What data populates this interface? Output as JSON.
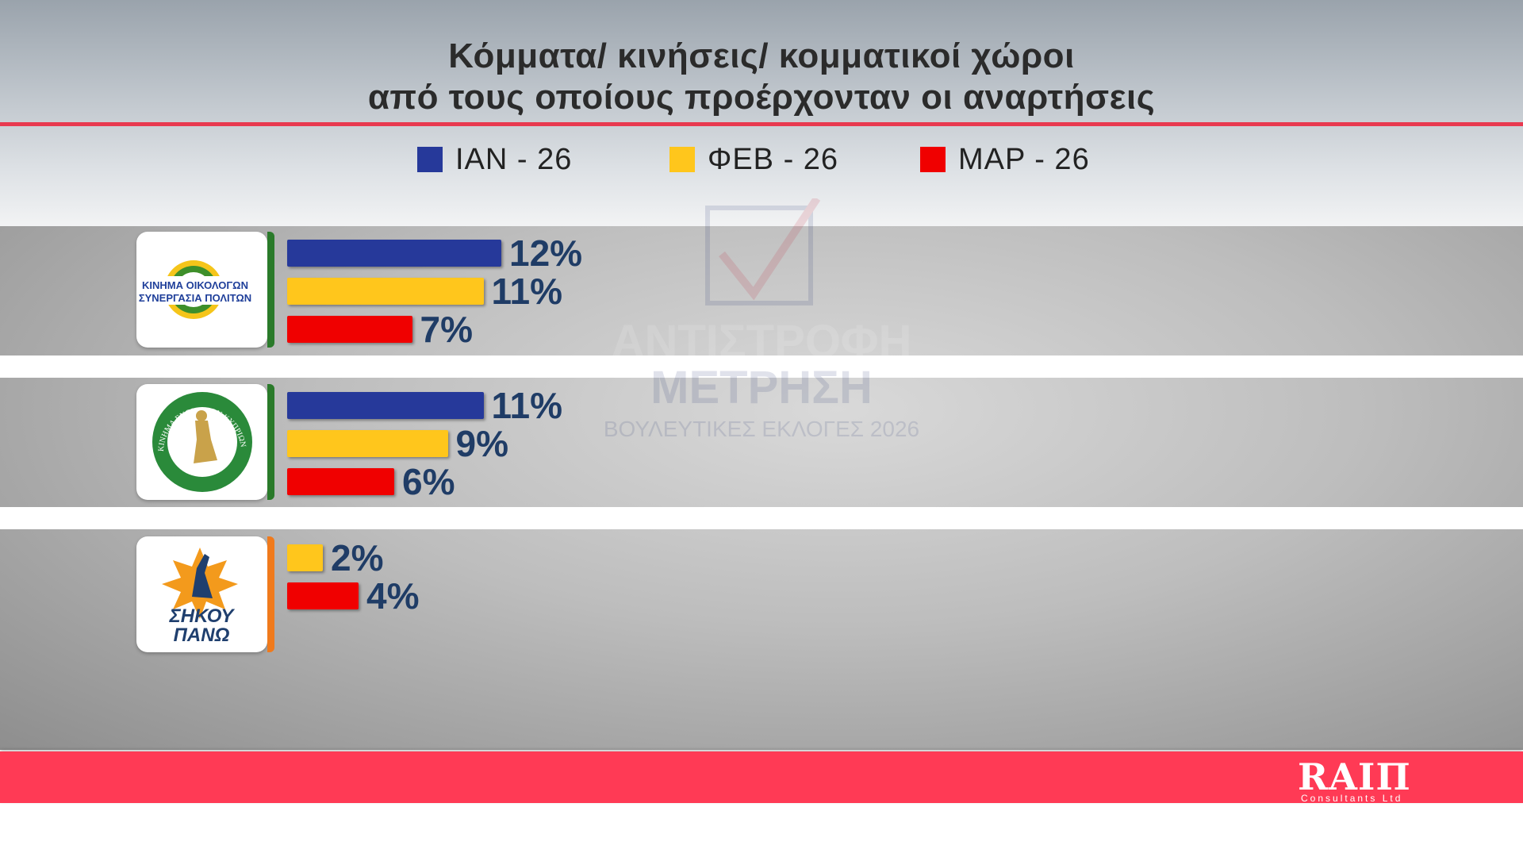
{
  "title_line1": "Κόμματα/ κινήσεις/ κομματικοί χώροι",
  "title_line2": "από τους οποίους προέρχονταν οι αναρτήσεις",
  "colors": {
    "jan": "#26399a",
    "feb": "#ffc61c",
    "mar": "#f00000",
    "accent": "#e8394f",
    "label": "#1f3c66"
  },
  "chart_data": {
    "type": "bar",
    "orientation": "horizontal",
    "title": "Κόμματα/ κινήσεις/ κομματικοί χώροι από τους οποίους προέρχονταν οι αναρτήσεις",
    "legend": [
      "ΙΑΝ - 26",
      "ΦΕΒ - 26",
      "ΜΑΡ - 26"
    ],
    "legend_position": "top-center",
    "categories": [
      "Κίνημα Οικολόγων Συνεργασία Πολιτών",
      "Κίνημα Ενωμένων Κυπρίων Κυνηγών",
      "Σήκου Πάνω"
    ],
    "series": [
      {
        "name": "ΙΑΝ - 26",
        "values": [
          12,
          11,
          null
        ],
        "labels": [
          "12%",
          "11%",
          ""
        ]
      },
      {
        "name": "ΦΕΒ - 26",
        "values": [
          11,
          9,
          2
        ],
        "labels": [
          "11%",
          "9%",
          "2%"
        ]
      },
      {
        "name": "ΜΑΡ - 26",
        "values": [
          7,
          6,
          4
        ],
        "labels": [
          "7%",
          "6%",
          "4%"
        ]
      }
    ],
    "unit": "%"
  },
  "logos": {
    "party1_line1": "ΚΙΝΗΜΑ ΟΙΚΟΛΟΓΩΝ",
    "party1_line2": "ΣΥΝΕΡΓΑΣΙΑ ΠΟΛΙΤΩΝ",
    "party2_ring": "ΚΙΝΗΜΑ ΕΝΩΜΕΝΩΝ ΚΥΠΡΙΩΝ ΚΥΝΗΓΩΝ",
    "party3_line1": "ΣΗΚΟΥ",
    "party3_line2": "ΠΑΝΩ"
  },
  "watermark": {
    "line1": "ΑΝΤΙΣΤΡΟΦΗ",
    "line2": "ΜΕΤΡΗΣΗ",
    "line3": "ΒΟΥΛΕΥΤΙΚΕΣ ΕΚΛΟΓΕΣ 2026"
  },
  "footer": {
    "brand": "RAIΠ",
    "sub": "Consultants Ltd"
  }
}
